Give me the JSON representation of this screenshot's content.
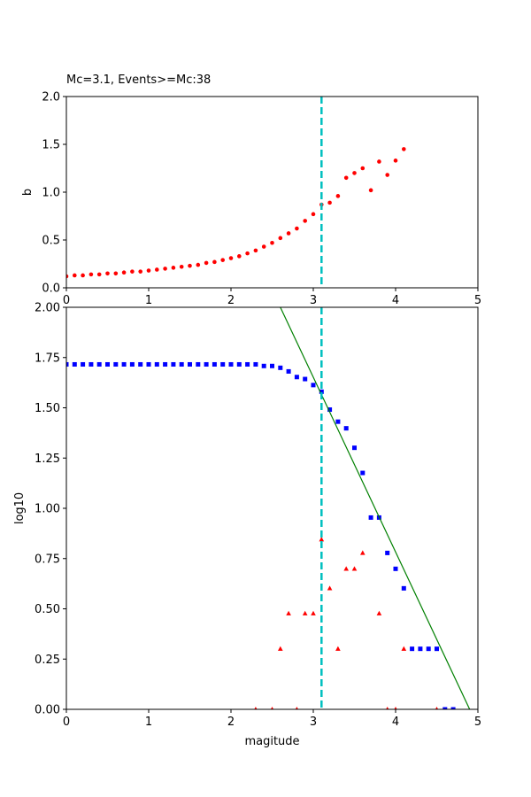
{
  "chart_data": [
    {
      "type": "scatter",
      "title": "Mc=3.1, Events>=Mc:38",
      "xlabel": "",
      "ylabel": "b",
      "xlim": [
        0,
        5
      ],
      "ylim": [
        0,
        2
      ],
      "xticks": [
        "0",
        "1",
        "2",
        "3",
        "4",
        "5"
      ],
      "yticks": [
        "0.0",
        "0.5",
        "1.0",
        "1.5",
        "2.0"
      ],
      "grid": false,
      "series": [
        {
          "marker": "circle",
          "color": "#ff0000",
          "x": [
            0.0,
            0.1,
            0.2,
            0.3,
            0.4,
            0.5,
            0.6,
            0.7,
            0.8,
            0.9,
            1.0,
            1.1,
            1.2,
            1.3,
            1.4,
            1.5,
            1.6,
            1.7,
            1.8,
            1.9,
            2.0,
            2.1,
            2.2,
            2.3,
            2.4,
            2.5,
            2.6,
            2.7,
            2.8,
            2.9,
            3.0,
            3.1,
            3.2,
            3.3,
            3.4,
            3.5,
            3.6,
            3.7,
            3.8,
            3.9,
            4.0,
            4.1
          ],
          "y": [
            0.12,
            0.13,
            0.13,
            0.14,
            0.14,
            0.15,
            0.15,
            0.16,
            0.17,
            0.17,
            0.18,
            0.19,
            0.2,
            0.21,
            0.22,
            0.23,
            0.24,
            0.26,
            0.27,
            0.29,
            0.31,
            0.33,
            0.36,
            0.39,
            0.43,
            0.47,
            0.52,
            0.57,
            0.62,
            0.7,
            0.77,
            0.87,
            0.89,
            0.96,
            1.15,
            1.2,
            1.25,
            1.02,
            1.32,
            1.18,
            1.33,
            1.45
          ]
        }
      ],
      "vline": {
        "x": 3.1,
        "color": "#00bfbf",
        "style": "dashed"
      }
    },
    {
      "type": "scatter",
      "title": "",
      "xlabel": "magitude",
      "ylabel": "log10",
      "xlim": [
        0,
        5
      ],
      "ylim": [
        0,
        2
      ],
      "xticks": [
        "0",
        "1",
        "2",
        "3",
        "4",
        "5"
      ],
      "yticks": [
        "0.00",
        "0.25",
        "0.50",
        "0.75",
        "1.00",
        "1.25",
        "1.50",
        "1.75",
        "2.00"
      ],
      "grid": false,
      "series": [
        {
          "marker": "square",
          "color": "#0000ff",
          "x": [
            0.0,
            0.1,
            0.2,
            0.3,
            0.4,
            0.5,
            0.6,
            0.7,
            0.8,
            0.9,
            1.0,
            1.1,
            1.2,
            1.3,
            1.4,
            1.5,
            1.6,
            1.7,
            1.8,
            1.9,
            2.0,
            2.1,
            2.2,
            2.3,
            2.4,
            2.5,
            2.6,
            2.7,
            2.8,
            2.9,
            3.0,
            3.1,
            3.2,
            3.3,
            3.4,
            3.5,
            3.6,
            3.7,
            3.8,
            3.9,
            4.0,
            4.1,
            4.2,
            4.3,
            4.4,
            4.5,
            4.6,
            4.7
          ],
          "y": [
            1.716,
            1.716,
            1.716,
            1.716,
            1.716,
            1.716,
            1.716,
            1.716,
            1.716,
            1.716,
            1.716,
            1.716,
            1.716,
            1.716,
            1.716,
            1.716,
            1.716,
            1.716,
            1.716,
            1.716,
            1.716,
            1.716,
            1.716,
            1.716,
            1.708,
            1.708,
            1.699,
            1.681,
            1.653,
            1.643,
            1.613,
            1.58,
            1.491,
            1.431,
            1.398,
            1.301,
            1.176,
            0.954,
            0.954,
            0.778,
            0.699,
            0.602,
            0.301,
            0.301,
            0.301,
            0.301,
            0.0,
            0.0
          ]
        },
        {
          "marker": "triangle",
          "color": "#ff0000",
          "x": [
            2.3,
            2.5,
            2.6,
            2.7,
            2.8,
            2.9,
            3.0,
            3.1,
            3.2,
            3.3,
            3.4,
            3.5,
            3.6,
            3.8,
            3.9,
            4.0,
            4.1,
            4.5
          ],
          "y": [
            0.0,
            0.0,
            0.301,
            0.477,
            0.0,
            0.477,
            0.477,
            0.845,
            0.602,
            0.301,
            0.699,
            0.699,
            0.778,
            0.477,
            0.0,
            0.0,
            0.301,
            0.0
          ]
        }
      ],
      "fit_line": {
        "x": [
          2.6,
          4.9
        ],
        "y": [
          2.0,
          0.0
        ],
        "color": "#008000"
      },
      "vline": {
        "x": 3.1,
        "color": "#00bfbf",
        "style": "dashed"
      }
    }
  ]
}
